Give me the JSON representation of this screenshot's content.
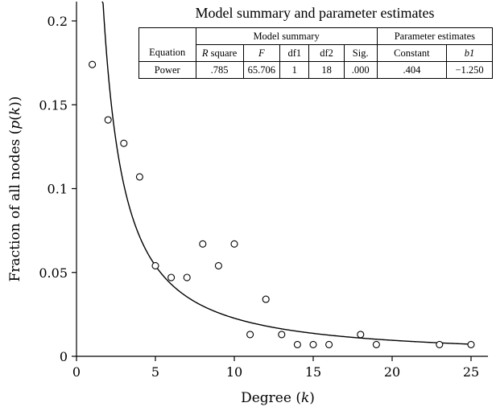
{
  "chart_data": {
    "type": "scatter",
    "title": "",
    "xlabel": "Degree (k)",
    "ylabel": "Fraction of all nodes (p(k))",
    "xlim": [
      0,
      26
    ],
    "ylim": [
      0,
      0.21
    ],
    "x_ticks": [
      "0",
      "5",
      "10",
      "15",
      "20",
      "25"
    ],
    "y_ticks": [
      "0",
      "0.05",
      "0.1",
      "0.15",
      "0.2"
    ],
    "x_tick_values": [
      0,
      5,
      10,
      15,
      20,
      25
    ],
    "y_tick_values": [
      0,
      0.05,
      0.1,
      0.15,
      0.2
    ],
    "grid": false,
    "points": [
      {
        "x": 1,
        "y": 0.174
      },
      {
        "x": 2,
        "y": 0.141
      },
      {
        "x": 3,
        "y": 0.127
      },
      {
        "x": 4,
        "y": 0.107
      },
      {
        "x": 5,
        "y": 0.054
      },
      {
        "x": 6,
        "y": 0.047
      },
      {
        "x": 7,
        "y": 0.047
      },
      {
        "x": 8,
        "y": 0.067
      },
      {
        "x": 9,
        "y": 0.054
      },
      {
        "x": 10,
        "y": 0.067
      },
      {
        "x": 11,
        "y": 0.013
      },
      {
        "x": 12,
        "y": 0.034
      },
      {
        "x": 13,
        "y": 0.013
      },
      {
        "x": 14,
        "y": 0.007
      },
      {
        "x": 15,
        "y": 0.007
      },
      {
        "x": 16,
        "y": 0.007
      },
      {
        "x": 18,
        "y": 0.013
      },
      {
        "x": 19,
        "y": 0.007
      },
      {
        "x": 23,
        "y": 0.007
      },
      {
        "x": 25,
        "y": 0.007
      }
    ],
    "fit": {
      "model": "power",
      "constant": 0.404,
      "b1": -1.25
    },
    "table": {
      "title": "Model summary and parameter estimates",
      "group_model": "Model summary",
      "group_params": "Parameter estimates",
      "col_equation": "Equation",
      "col_r2": "R square",
      "col_f": "F",
      "col_df1": "df1",
      "col_df2": "df2",
      "col_sig": "Sig.",
      "col_constant": "Constant",
      "col_b1": "b1",
      "row_equation": "Power",
      "row_r2": ".785",
      "row_f": "65.706",
      "row_df1": "1",
      "row_df2": "18",
      "row_sig": ".000",
      "row_constant": ".404",
      "row_b1": "−1.250"
    }
  }
}
